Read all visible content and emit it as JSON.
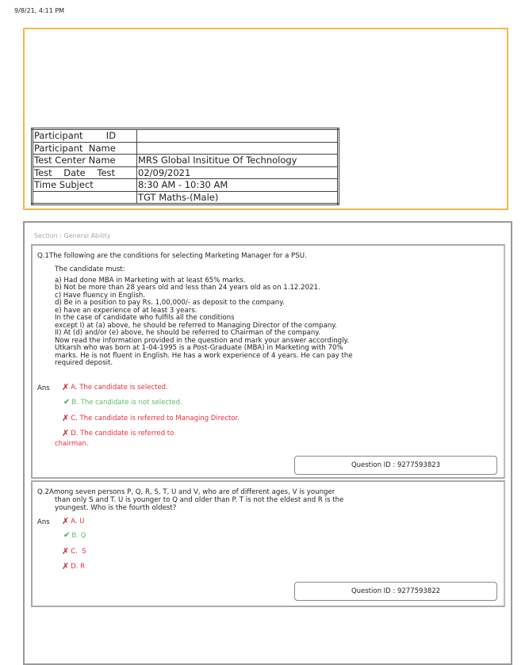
{
  "timestamp": "9/8/21, 4:11 PM",
  "info": {
    "rows": [
      {
        "label": "Participant        ID",
        "value": ""
      },
      {
        "label": "Participant  Name",
        "value": ""
      },
      {
        "label": "Test Center Name",
        "value": "MRS Global Insititue Of Technology"
      },
      {
        "label": "Test    Date    Test",
        "value": "02/09/2021"
      },
      {
        "label": "Time Subject",
        "value": "8:30 AM - 10:30 AM"
      },
      {
        "label": "",
        "value": "TGT Maths-(Male)"
      }
    ]
  },
  "section": "Section : General Ability",
  "ans_label": "Ans",
  "colors": {
    "wrong": "#ee2a3a",
    "correct": "#5cbc68",
    "header_border": "#f7b64a"
  },
  "questions": [
    {
      "title": "Q.1The following are the conditions for selecting Marketing Manager for a PSU.",
      "body": [
        "The candidate must:",
        "a) Had done MBA in Marketing with at least 65% marks.",
        "b) Not be more than 28 years old and less than 24 years old as on 1.12.2021.",
        "c) Have fluency in English.",
        "d) Be in a position to pay Rs. 1,00,000/- as deposit to the company.",
        "e) have an experience of at least 3 years.",
        "In the case of candidate who fulfils all the conditions",
        "except I) at (a) above, he should be referred to Managing Director of the company.",
        "II) At (d) and/or (e) above, he should be referred to Chairman of the company.",
        "Now read the information provided in the question and mark your answer accordingly.",
        "Utkarsh who was born at 1-04-1995 is a Post-Graduate (MBA) in Marketing with 70%",
        "marks. He is not fluent in English. He has a work experience of 4 years. He can pay the",
        "required deposit."
      ],
      "options": [
        {
          "text": "A. The candidate is selected.",
          "correct": false
        },
        {
          "text": "B. The candidate is not selected.",
          "correct": true
        },
        {
          "text": "C. The candidate is referred to Managing Director.",
          "correct": false
        },
        {
          "text": "D. The candidate is referred to",
          "text2": "chairman.",
          "correct": false
        }
      ],
      "qid": "Question ID : 9277593823"
    },
    {
      "title": "Q.2Among seven persons P, Q, R, S, T, U and V, who are of different ages, V is younger",
      "title_cont": [
        "than only S and T. U is younger to Q and older than P. T is not the eldest and R is the",
        "youngest. Who is the fourth oldest?"
      ],
      "options": [
        {
          "text": "A. U",
          "correct": false
        },
        {
          "text": "B. Q",
          "correct": true
        },
        {
          "text": "C.  S",
          "correct": false
        },
        {
          "text": "D. R",
          "correct": false
        }
      ],
      "qid": "Question ID : 9277593822"
    }
  ]
}
